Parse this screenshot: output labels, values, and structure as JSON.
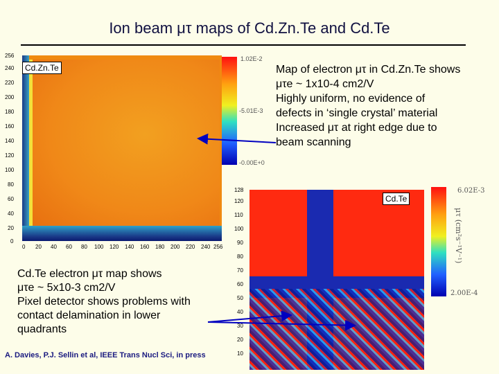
{
  "title": "Ion beam μτ maps of Cd.Zn.Te and Cd.Te",
  "map1": {
    "tag": "Cd.Zn.Te",
    "y_ticks": [
      "256",
      "240",
      "220",
      "200",
      "180",
      "160",
      "140",
      "120",
      "100",
      "80",
      "60",
      "40",
      "20",
      "0"
    ],
    "x_ticks": [
      "0",
      "20",
      "40",
      "60",
      "80",
      "100",
      "120",
      "140",
      "160",
      "180",
      "200",
      "220",
      "240",
      "256"
    ],
    "colorbar_labels": [
      "1.02E-2",
      "-5.01E-3",
      "-0.00E+0"
    ]
  },
  "annotation1": {
    "lines": [
      "Map of electron μτ in Cd.Zn.Te shows",
      "μτe ~ 1x10-4 cm2/V",
      "Highly uniform, no evidence of",
      "defects in ‘single crystal’ material",
      "Increased μτ at right edge due to",
      "beam scanning"
    ]
  },
  "map2": {
    "tag": "Cd.Te",
    "y_ticks": [
      "128",
      "120",
      "110",
      "100",
      "90",
      "80",
      "70",
      "60",
      "50",
      "40",
      "30",
      "20",
      "10"
    ],
    "colorbar_labels": [
      "6.02E-3",
      "2.00E-4"
    ],
    "colorbar_unit": "μτ (cm²s⁻¹V⁻¹)"
  },
  "annotation2": {
    "lines": [
      "Cd.Te electron μτ map shows",
      "μτe ~ 5x10-3 cm2/V",
      "Pixel detector shows problems with",
      "contact delamination in lower",
      "quadrants"
    ]
  },
  "citation": "A. Davies, P.J. Sellin et al, IEEE Trans Nucl Sci, in press"
}
